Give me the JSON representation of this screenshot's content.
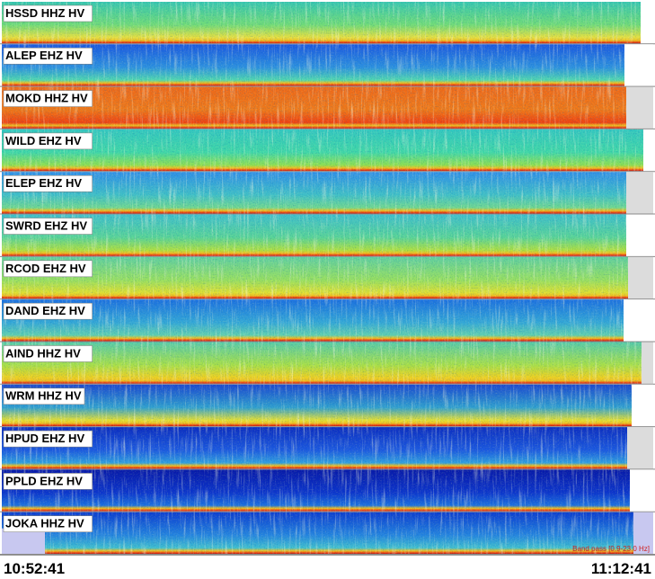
{
  "panels": [
    "HSSD HHZ HV",
    "ALEP EHZ HV",
    "MOKD HHZ HV",
    "WILD EHZ HV",
    "ELEP EHZ HV",
    "SWRD EHZ HV",
    "RCOD EHZ HV",
    "DAND EHZ HV",
    "AIND HHZ HV",
    "WRM HHZ HV",
    "HPUD EHZ HV",
    "PPLD EHZ HV",
    "JOKA HHZ HV"
  ],
  "start_time": "10:52:41",
  "end_time": "11:12:41",
  "filter_note": "Band pass [0.9-23.0 Hz]"
}
